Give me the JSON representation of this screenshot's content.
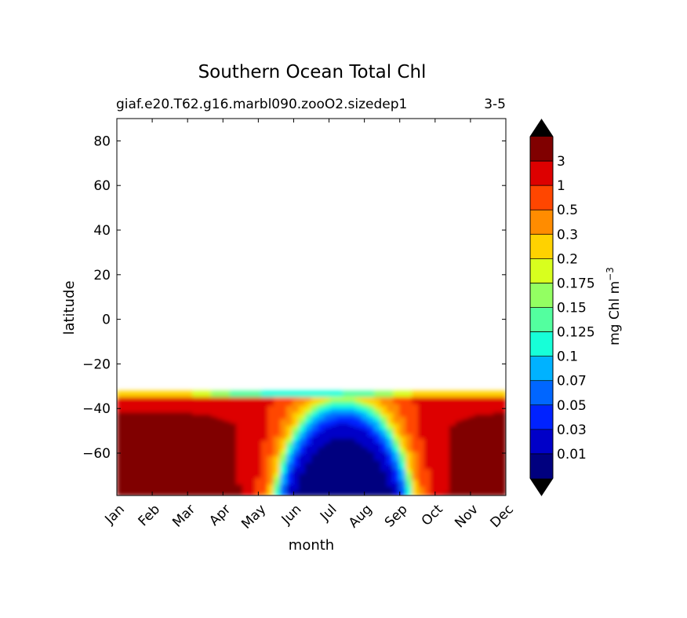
{
  "chart_data": {
    "type": "heatmap",
    "title": "Southern Ocean Total Chl",
    "subtitle_left": "giaf.e20.T62.g16.marbl090.zooO2.sizedep1",
    "subtitle_right": "3-5",
    "xlabel": "month",
    "ylabel": "latitude",
    "x_ticks": [
      "Jan",
      "Feb",
      "Mar",
      "Apr",
      "May",
      "Jun",
      "Jul",
      "Aug",
      "Sep",
      "Oct",
      "Nov",
      "Dec"
    ],
    "ylim": [
      -79,
      90
    ],
    "y_ticks": [
      80,
      60,
      40,
      20,
      0,
      -20,
      -40,
      -60
    ],
    "y_tick_labels": [
      "80",
      "60",
      "40",
      "20",
      "0",
      "−20",
      "−40",
      "−60"
    ],
    "data_lat_range": [
      -79,
      -32
    ],
    "colorbar": {
      "label": "mg Chl m",
      "label_exponent": "−3",
      "extend": "both",
      "levels": [
        0.01,
        0.03,
        0.05,
        0.07,
        0.1,
        0.125,
        0.15,
        0.175,
        0.2,
        0.3,
        0.5,
        1,
        3
      ],
      "tick_labels": [
        "0.01",
        "0.03",
        "0.05",
        "0.07",
        "0.1",
        "0.125",
        "0.15",
        "0.175",
        "0.2",
        "0.3",
        "0.5",
        "1",
        "3"
      ],
      "colors": [
        "#00007f",
        "#0000c8",
        "#0022ff",
        "#0066ff",
        "#00b2ff",
        "#17ffd8",
        "#53ff9f",
        "#93ff62",
        "#d8ff1e",
        "#ffd200",
        "#ff8c00",
        "#ff4600",
        "#dd0000",
        "#800000"
      ],
      "over_color": "#000000",
      "under_color": "#000000"
    },
    "grid": false
  }
}
